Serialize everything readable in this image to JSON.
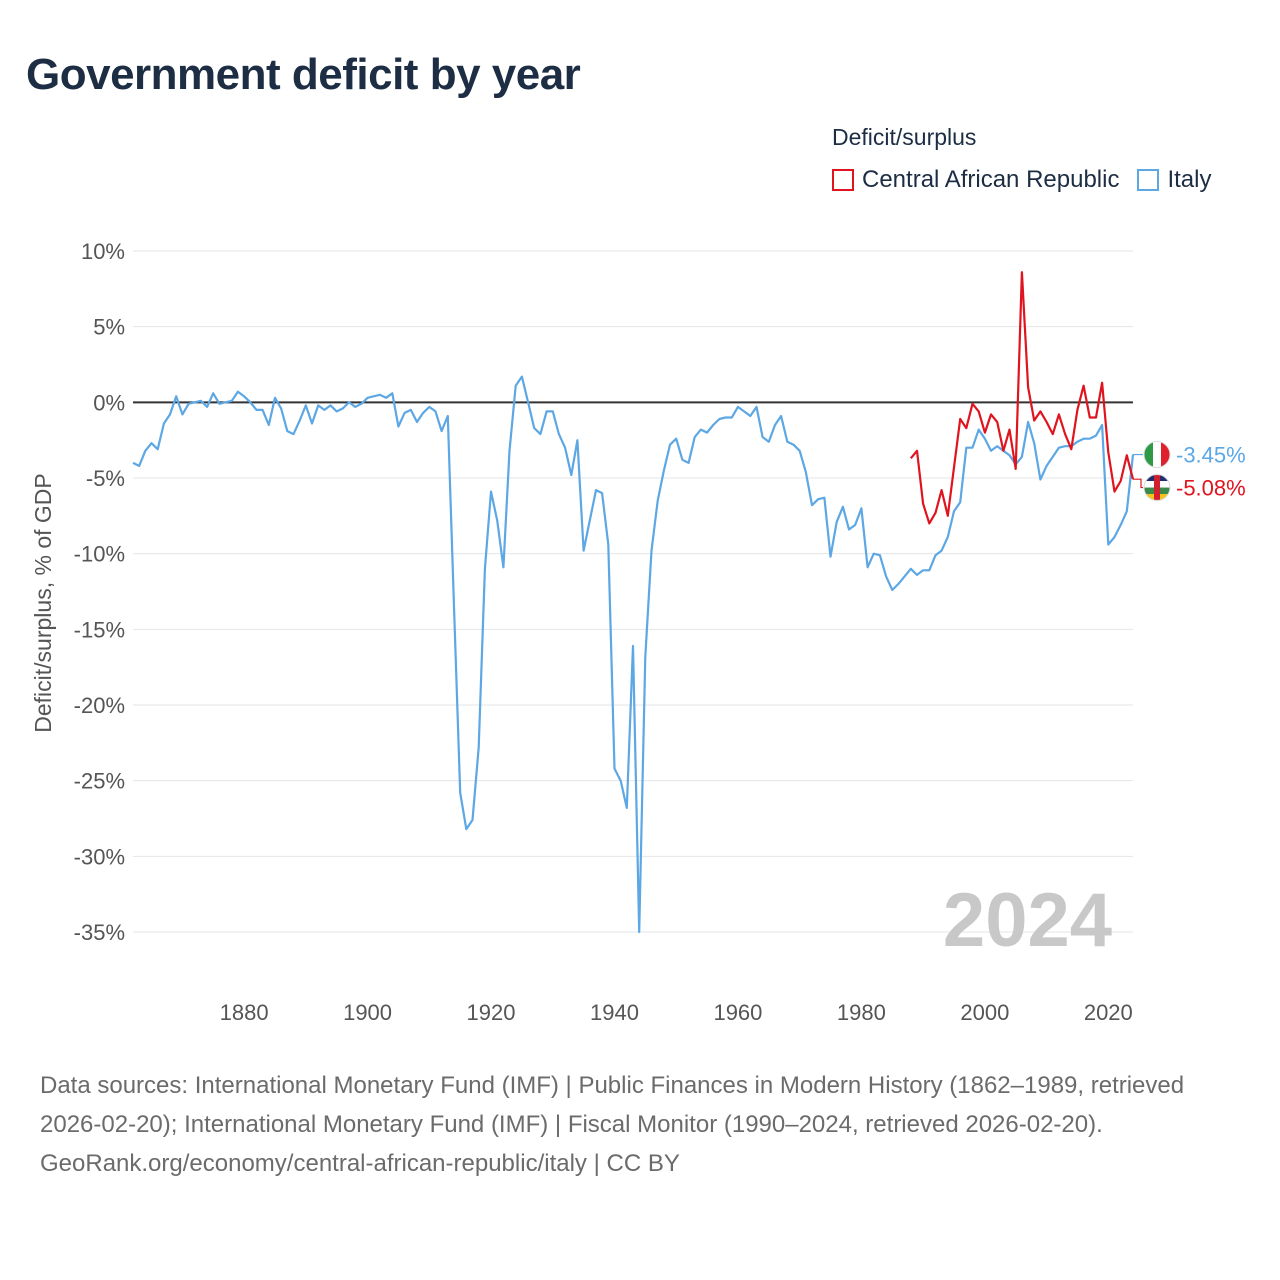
{
  "title": "Government deficit by year",
  "legend": {
    "title": "Deficit/surplus",
    "items": [
      {
        "label": "Central African Republic",
        "color": "#e0141e"
      },
      {
        "label": "Italy",
        "color": "#5ca7e4"
      }
    ]
  },
  "footer": {
    "sources": "Data sources: International Monetary Fund (IMF) | Public Finances in Modern History (1862–1989, retrieved 2026-02-20); International Monetary Fund (IMF) | Fiscal Monitor (1990–2024, retrieved 2026-02-20).",
    "credit": "GeoRank.org/economy/central-african-republic/italy | CC BY"
  },
  "chart_data": {
    "type": "line",
    "title": "Government deficit by year",
    "xlabel": "",
    "ylabel": "Deficit/surplus, % of GDP",
    "xlim": [
      1862,
      2024
    ],
    "ylim": [
      -35,
      10
    ],
    "x_ticks": [
      1880,
      1900,
      1920,
      1940,
      1960,
      1980,
      2000,
      2020
    ],
    "x_tick_labels": [
      "1880",
      "1900",
      "1920",
      "1940",
      "1960",
      "1980",
      "2000",
      "2020"
    ],
    "y_ticks": [
      10,
      5,
      0,
      -5,
      -10,
      -15,
      -20,
      -25,
      -30,
      -35
    ],
    "y_tick_labels": [
      "10%",
      "5%",
      "0%",
      "-5%",
      "-10%",
      "-15%",
      "-20%",
      "-25%",
      "-30%",
      "-35%"
    ],
    "year_watermark": "2024",
    "series": [
      {
        "name": "Italy",
        "color": "#5ca7e4",
        "end_label": "-3.45%",
        "points": [
          [
            1862,
            -4.0
          ],
          [
            1863,
            -4.2
          ],
          [
            1864,
            -3.2
          ],
          [
            1865,
            -2.7
          ],
          [
            1866,
            -3.1
          ],
          [
            1867,
            -1.4
          ],
          [
            1868,
            -0.8
          ],
          [
            1869,
            0.4
          ],
          [
            1870,
            -0.8
          ],
          [
            1871,
            -0.1
          ],
          [
            1872,
            0.0
          ],
          [
            1873,
            0.1
          ],
          [
            1874,
            -0.3
          ],
          [
            1875,
            0.6
          ],
          [
            1876,
            -0.1
          ],
          [
            1877,
            0.0
          ],
          [
            1878,
            0.1
          ],
          [
            1879,
            0.7
          ],
          [
            1880,
            0.4
          ],
          [
            1881,
            0.0
          ],
          [
            1882,
            -0.5
          ],
          [
            1883,
            -0.5
          ],
          [
            1884,
            -1.5
          ],
          [
            1885,
            0.3
          ],
          [
            1886,
            -0.4
          ],
          [
            1887,
            -1.9
          ],
          [
            1888,
            -2.1
          ],
          [
            1889,
            -1.2
          ],
          [
            1890,
            -0.2
          ],
          [
            1891,
            -1.4
          ],
          [
            1892,
            -0.2
          ],
          [
            1893,
            -0.5
          ],
          [
            1894,
            -0.2
          ],
          [
            1895,
            -0.6
          ],
          [
            1896,
            -0.4
          ],
          [
            1897,
            0.0
          ],
          [
            1898,
            -0.3
          ],
          [
            1899,
            -0.1
          ],
          [
            1900,
            0.3
          ],
          [
            1901,
            0.4
          ],
          [
            1902,
            0.5
          ],
          [
            1903,
            0.3
          ],
          [
            1904,
            0.6
          ],
          [
            1905,
            -1.6
          ],
          [
            1906,
            -0.7
          ],
          [
            1907,
            -0.5
          ],
          [
            1908,
            -1.3
          ],
          [
            1909,
            -0.7
          ],
          [
            1910,
            -0.3
          ],
          [
            1911,
            -0.6
          ],
          [
            1912,
            -1.9
          ],
          [
            1913,
            -0.9
          ],
          [
            1914,
            -13.5
          ],
          [
            1915,
            -25.8
          ],
          [
            1916,
            -28.2
          ],
          [
            1917,
            -27.6
          ],
          [
            1918,
            -22.8
          ],
          [
            1919,
            -11.0
          ],
          [
            1920,
            -5.9
          ],
          [
            1921,
            -7.8
          ],
          [
            1922,
            -10.9
          ],
          [
            1923,
            -3.2
          ],
          [
            1924,
            1.1
          ],
          [
            1925,
            1.7
          ],
          [
            1926,
            0.0
          ],
          [
            1927,
            -1.7
          ],
          [
            1928,
            -2.1
          ],
          [
            1929,
            -0.6
          ],
          [
            1930,
            -0.6
          ],
          [
            1931,
            -2.1
          ],
          [
            1932,
            -3.0
          ],
          [
            1933,
            -4.8
          ],
          [
            1934,
            -2.5
          ],
          [
            1935,
            -9.8
          ],
          [
            1936,
            -7.8
          ],
          [
            1937,
            -5.8
          ],
          [
            1938,
            -6.0
          ],
          [
            1939,
            -9.4
          ],
          [
            1940,
            -24.2
          ],
          [
            1941,
            -25.0
          ],
          [
            1942,
            -26.8
          ],
          [
            1943,
            -16.1
          ],
          [
            1944,
            -35.0
          ],
          [
            1945,
            -16.8
          ],
          [
            1946,
            -9.8
          ],
          [
            1947,
            -6.5
          ],
          [
            1948,
            -4.5
          ],
          [
            1949,
            -2.8
          ],
          [
            1950,
            -2.4
          ],
          [
            1951,
            -3.8
          ],
          [
            1952,
            -4.0
          ],
          [
            1953,
            -2.3
          ],
          [
            1954,
            -1.8
          ],
          [
            1955,
            -2.0
          ],
          [
            1956,
            -1.5
          ],
          [
            1957,
            -1.1
          ],
          [
            1958,
            -1.0
          ],
          [
            1959,
            -1.0
          ],
          [
            1960,
            -0.3
          ],
          [
            1961,
            -0.6
          ],
          [
            1962,
            -0.9
          ],
          [
            1963,
            -0.3
          ],
          [
            1964,
            -2.3
          ],
          [
            1965,
            -2.6
          ],
          [
            1966,
            -1.5
          ],
          [
            1967,
            -0.9
          ],
          [
            1968,
            -2.6
          ],
          [
            1969,
            -2.8
          ],
          [
            1970,
            -3.2
          ],
          [
            1971,
            -4.6
          ],
          [
            1972,
            -6.8
          ],
          [
            1973,
            -6.4
          ],
          [
            1974,
            -6.3
          ],
          [
            1975,
            -10.2
          ],
          [
            1976,
            -7.9
          ],
          [
            1977,
            -6.9
          ],
          [
            1978,
            -8.4
          ],
          [
            1979,
            -8.1
          ],
          [
            1980,
            -7.0
          ],
          [
            1981,
            -10.9
          ],
          [
            1982,
            -10.0
          ],
          [
            1983,
            -10.1
          ],
          [
            1984,
            -11.5
          ],
          [
            1985,
            -12.4
          ],
          [
            1986,
            -12.0
          ],
          [
            1987,
            -11.5
          ],
          [
            1988,
            -11.0
          ],
          [
            1989,
            -11.4
          ],
          [
            1990,
            -11.1
          ],
          [
            1991,
            -11.1
          ],
          [
            1992,
            -10.1
          ],
          [
            1993,
            -9.8
          ],
          [
            1994,
            -8.9
          ],
          [
            1995,
            -7.2
          ],
          [
            1996,
            -6.6
          ],
          [
            1997,
            -3.0
          ],
          [
            1998,
            -3.0
          ],
          [
            1999,
            -1.8
          ],
          [
            2000,
            -2.4
          ],
          [
            2001,
            -3.2
          ],
          [
            2002,
            -2.9
          ],
          [
            2003,
            -3.2
          ],
          [
            2004,
            -3.5
          ],
          [
            2005,
            -4.1
          ],
          [
            2006,
            -3.6
          ],
          [
            2007,
            -1.3
          ],
          [
            2008,
            -2.7
          ],
          [
            2009,
            -5.1
          ],
          [
            2010,
            -4.2
          ],
          [
            2011,
            -3.6
          ],
          [
            2012,
            -3.0
          ],
          [
            2013,
            -2.9
          ],
          [
            2014,
            -2.9
          ],
          [
            2015,
            -2.6
          ],
          [
            2016,
            -2.4
          ],
          [
            2017,
            -2.4
          ],
          [
            2018,
            -2.2
          ],
          [
            2019,
            -1.5
          ],
          [
            2020,
            -9.4
          ],
          [
            2021,
            -8.9
          ],
          [
            2022,
            -8.1
          ],
          [
            2023,
            -7.2
          ],
          [
            2024,
            -3.45
          ]
        ]
      },
      {
        "name": "Central African Republic",
        "color": "#e0141e",
        "end_label": "-5.08%",
        "points": [
          [
            1988,
            -3.7
          ],
          [
            1989,
            -3.2
          ],
          [
            1990,
            -6.7
          ],
          [
            1991,
            -8.0
          ],
          [
            1992,
            -7.3
          ],
          [
            1993,
            -5.8
          ],
          [
            1994,
            -7.5
          ],
          [
            1995,
            -4.3
          ],
          [
            1996,
            -1.1
          ],
          [
            1997,
            -1.7
          ],
          [
            1998,
            -0.1
          ],
          [
            1999,
            -0.6
          ],
          [
            2000,
            -2.0
          ],
          [
            2001,
            -0.8
          ],
          [
            2002,
            -1.3
          ],
          [
            2003,
            -3.2
          ],
          [
            2004,
            -1.8
          ],
          [
            2005,
            -4.4
          ],
          [
            2006,
            8.6
          ],
          [
            2007,
            1.0
          ],
          [
            2008,
            -1.2
          ],
          [
            2009,
            -0.6
          ],
          [
            2010,
            -1.3
          ],
          [
            2011,
            -2.1
          ],
          [
            2012,
            -0.8
          ],
          [
            2013,
            -2.1
          ],
          [
            2014,
            -3.1
          ],
          [
            2015,
            -0.5
          ],
          [
            2016,
            1.1
          ],
          [
            2017,
            -1.0
          ],
          [
            2018,
            -1.0
          ],
          [
            2019,
            1.3
          ],
          [
            2020,
            -3.3
          ],
          [
            2021,
            -5.9
          ],
          [
            2022,
            -5.2
          ],
          [
            2023,
            -3.5
          ],
          [
            2024,
            -5.08
          ]
        ]
      }
    ]
  }
}
